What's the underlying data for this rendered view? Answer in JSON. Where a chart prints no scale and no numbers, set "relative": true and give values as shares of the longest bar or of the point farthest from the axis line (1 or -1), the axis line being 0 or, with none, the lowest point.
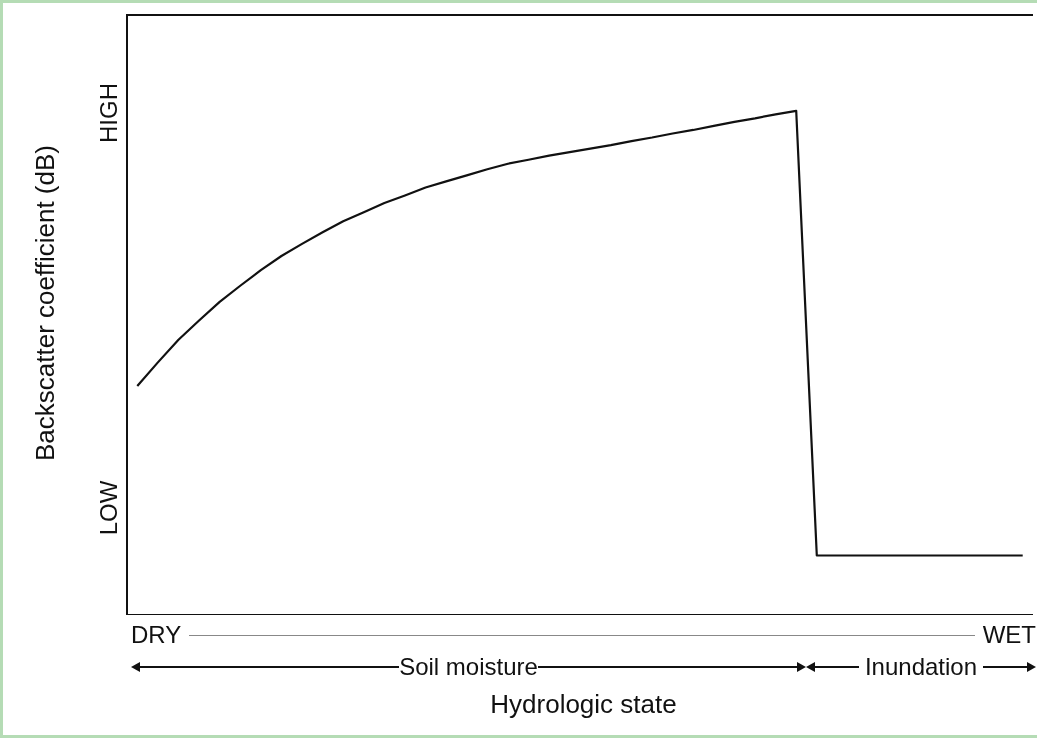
{
  "chart_data": {
    "type": "line",
    "relative": true,
    "ylabel": "Backscatter coefficient (dB)",
    "xlabel": "Hydrologic state",
    "categories": [
      null,
      null,
      null,
      null,
      null,
      null,
      null,
      null,
      null,
      null,
      null,
      null,
      null,
      null,
      null,
      null,
      null,
      null,
      null,
      null,
      null,
      null,
      null,
      null,
      null,
      null,
      null,
      null,
      null,
      null,
      null,
      null,
      null,
      null,
      null,
      null,
      null,
      null,
      null,
      null,
      null,
      null,
      null,
      null
    ],
    "series": [
      {
        "color": "#111111",
        "values": [
          0.454,
          0.501,
          0.546,
          0.584,
          0.621,
          0.653,
          0.684,
          0.712,
          0.736,
          0.759,
          0.781,
          0.799,
          0.817,
          0.832,
          0.848,
          0.86,
          0.872,
          0.884,
          0.895,
          0.903,
          0.911,
          0.918,
          0.925,
          0.932,
          0.94,
          0.947,
          0.955,
          0.962,
          0.97,
          0.978,
          0.985,
          0.993,
          1.0,
          0.118,
          0.118,
          0.118,
          0.118,
          0.118,
          0.118,
          0.118,
          0.118,
          0.118,
          0.118,
          0.118
        ]
      }
    ],
    "annotations": [
      "HIGH",
      "LOW",
      "DRY",
      "WET",
      "Soil moisture",
      "Inundation"
    ],
    "marker": "none",
    "line_style": "solid",
    "grid": false,
    "legend": false
  }
}
